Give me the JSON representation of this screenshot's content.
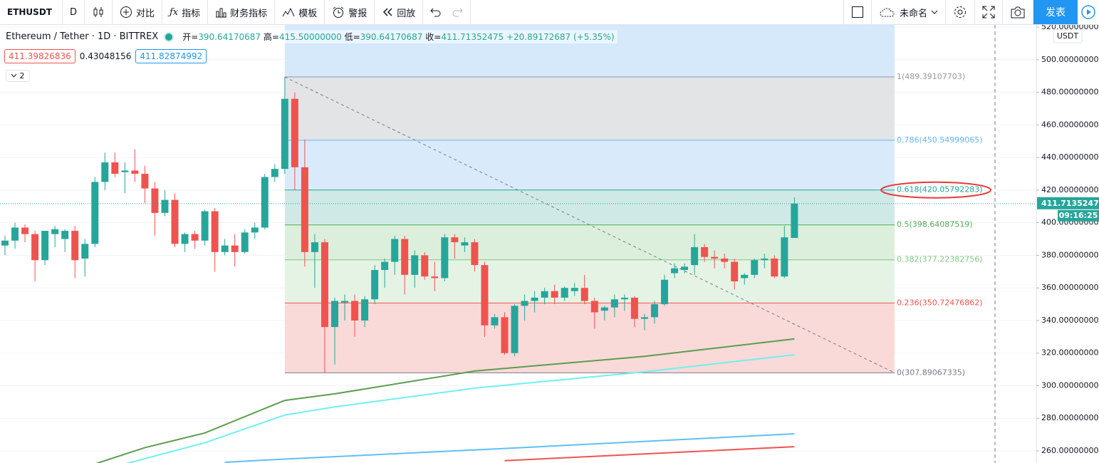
{
  "toolbar": {
    "symbol": "ETHUSDT",
    "interval": "D",
    "items": [
      "对比",
      "指标",
      "财务指标",
      "模板",
      "警报",
      "回放"
    ],
    "layout_name": "未命名",
    "publish": "发表"
  },
  "legend": {
    "title": "Ethereum / Tether · 1D · BITTREX",
    "open_label": "开=",
    "open": "390.64170687",
    "high_label": "高=",
    "high": "415.50000000",
    "low_label": "低=",
    "low": "390.64170687",
    "close_label": "收=",
    "close": "411.71352475",
    "change": "+20.89172687 (+5.35%)",
    "bid": "411.39826836",
    "spread": "0.43048156",
    "ask": "411.82874992",
    "indicators_count": "2"
  },
  "chart_data": {
    "type": "candlestick",
    "ylim": [
      252.58,
      521.31
    ],
    "yticks": [
      {
        "value": 260,
        "label": "260.00000000"
      },
      {
        "value": 280,
        "label": "280.00000000"
      },
      {
        "value": 300,
        "label": "300.00000000"
      },
      {
        "value": 320,
        "label": "320.00000000"
      },
      {
        "value": 340,
        "label": "340.00000000"
      },
      {
        "value": 360,
        "label": "360.00000000"
      },
      {
        "value": 380,
        "label": "380.00000000"
      },
      {
        "value": 400,
        "label": "400.00000000"
      },
      {
        "value": 420,
        "label": "420.00000000"
      },
      {
        "value": 440,
        "label": "440.00000000"
      },
      {
        "value": 460,
        "label": "460.00000000"
      },
      {
        "value": 480,
        "label": "480.00000000"
      },
      {
        "value": 500,
        "label": "500.00000000"
      },
      {
        "value": 520,
        "label": "520.00000000"
      }
    ],
    "grid": true,
    "currency": "USDT",
    "last_price": {
      "value": 411.71352475,
      "label": "411.71352475"
    },
    "countdown": "09:16:25",
    "up_color": "#26a69a",
    "down_color": "#ef5350",
    "candles": [
      [
        386,
        392,
        380,
        389
      ],
      [
        389,
        400,
        384,
        397
      ],
      [
        397,
        399,
        388,
        393
      ],
      [
        393,
        395,
        364,
        377
      ],
      [
        377,
        395,
        374,
        395
      ],
      [
        393,
        398,
        385,
        396
      ],
      [
        390,
        396,
        382,
        395
      ],
      [
        395,
        398,
        366,
        377
      ],
      [
        378,
        390,
        367,
        387
      ],
      [
        387,
        428,
        385,
        425
      ],
      [
        425,
        443,
        420,
        437
      ],
      [
        437,
        443,
        428,
        430
      ],
      [
        431,
        437,
        418,
        432
      ],
      [
        432,
        445,
        425,
        430
      ],
      [
        430,
        435,
        412,
        421
      ],
      [
        421,
        425,
        392,
        406
      ],
      [
        406,
        420,
        404,
        414
      ],
      [
        414,
        418,
        385,
        387
      ],
      [
        387,
        394,
        382,
        393
      ],
      [
        393,
        395,
        384,
        389
      ],
      [
        389,
        408,
        386,
        407
      ],
      [
        407,
        409,
        370,
        382
      ],
      [
        382,
        390,
        380,
        386
      ],
      [
        386,
        393,
        373,
        382
      ],
      [
        382,
        396,
        381,
        394
      ],
      [
        394,
        400,
        390,
        397
      ],
      [
        397,
        430,
        396,
        428
      ],
      [
        428,
        436,
        425,
        433
      ],
      [
        433,
        489.39,
        430,
        476
      ],
      [
        476,
        480,
        420,
        434
      ],
      [
        434,
        451,
        373,
        382
      ],
      [
        382,
        393,
        360,
        388
      ],
      [
        388,
        390,
        307.89,
        336
      ],
      [
        336,
        354,
        313,
        352
      ],
      [
        351,
        356,
        340,
        352
      ],
      [
        352,
        356,
        330,
        340
      ],
      [
        340,
        355,
        336,
        353
      ],
      [
        353,
        374,
        350,
        371
      ],
      [
        371,
        378,
        360,
        376
      ],
      [
        376,
        392,
        368,
        390
      ],
      [
        390,
        392,
        356,
        368
      ],
      [
        368,
        383,
        360,
        380
      ],
      [
        380,
        382,
        365,
        367
      ],
      [
        367,
        376,
        358,
        366
      ],
      [
        366,
        393,
        364,
        391
      ],
      [
        391,
        393,
        378,
        388
      ],
      [
        386,
        391,
        382,
        388
      ],
      [
        388,
        390,
        370,
        374
      ],
      [
        374,
        376,
        330,
        337
      ],
      [
        337,
        344,
        335,
        342
      ],
      [
        342,
        345,
        319,
        320
      ],
      [
        320,
        350,
        318,
        349
      ],
      [
        349,
        356,
        340,
        352
      ],
      [
        352,
        358,
        345,
        354
      ],
      [
        354,
        360,
        350,
        358
      ],
      [
        358,
        362,
        350,
        354
      ],
      [
        354,
        361,
        352,
        360
      ],
      [
        358,
        363,
        355,
        360
      ],
      [
        360,
        368,
        350,
        352
      ],
      [
        352,
        354,
        335,
        345
      ],
      [
        346,
        349,
        340,
        348
      ],
      [
        348,
        356,
        342,
        353
      ],
      [
        353,
        356,
        346,
        354
      ],
      [
        354,
        355,
        336,
        341
      ],
      [
        341,
        344,
        334,
        342
      ],
      [
        342,
        352,
        338,
        350
      ],
      [
        350,
        368,
        349,
        365
      ],
      [
        369,
        375,
        366,
        372
      ],
      [
        371,
        375,
        369,
        373
      ],
      [
        374,
        393,
        368,
        385
      ],
      [
        385,
        387,
        376,
        379
      ],
      [
        379,
        383,
        372,
        378
      ],
      [
        378,
        381,
        372,
        376
      ],
      [
        376,
        378,
        359,
        364
      ],
      [
        366,
        369,
        362,
        368
      ],
      [
        368,
        378,
        366,
        377
      ],
      [
        377,
        381,
        372,
        378
      ],
      [
        378,
        380,
        366,
        367
      ],
      [
        367,
        398,
        366,
        391
      ],
      [
        390.64170687,
        415.5,
        390.64170687,
        411.71352475
      ]
    ],
    "moving_averages": [
      {
        "color": "#5b9e4d",
        "x": [
          9,
          14,
          20,
          28,
          33,
          47,
          64,
          79
        ],
        "values": [
          252,
          262,
          271,
          291,
          295,
          309,
          318,
          328.7
        ]
      },
      {
        "color": "#6ff0f0",
        "x": [
          12,
          20,
          28,
          33,
          47,
          64,
          79
        ],
        "values": [
          252,
          265,
          282,
          287,
          298.5,
          308.5,
          319
        ]
      },
      {
        "color": "#5fc0f5",
        "x": [
          22,
          28,
          50,
          79
        ],
        "values": [
          253,
          255,
          261.5,
          270.5
        ]
      },
      {
        "color": "#ef5350",
        "x": [
          50,
          79
        ],
        "values": [
          254,
          262.6
        ]
      }
    ],
    "fib": {
      "top_fill": "#d6e9fb",
      "levels": [
        {
          "value": 489.39107703,
          "label": "1(489.39107703)",
          "color": "#9598a1",
          "fill": "#e3e4e6"
        },
        {
          "value": 450.54999065,
          "label": "0.786(450.54999065)",
          "color": "#64b5f6",
          "fill": "#d9ebfb"
        },
        {
          "value": 420.05792283,
          "label": "0.618(420.05792283)",
          "color": "#26a69a",
          "fill": "#cfeae6"
        },
        {
          "value": 398.64087519,
          "label": "0.5(398.64087519)",
          "color": "#4caf50",
          "fill": "#dcefdc"
        },
        {
          "value": 377.22382756,
          "label": "0.382(377.22382756)",
          "color": "#81c784",
          "fill": "#e5f3e5"
        },
        {
          "value": 350.72476862,
          "label": "0.236(350.72476862)",
          "color": "#ef5350",
          "fill": "#fad9d9"
        },
        {
          "value": 307.89067335,
          "label": "0(307.89067335)",
          "color": "#787b86",
          "fill": null
        }
      ]
    }
  }
}
